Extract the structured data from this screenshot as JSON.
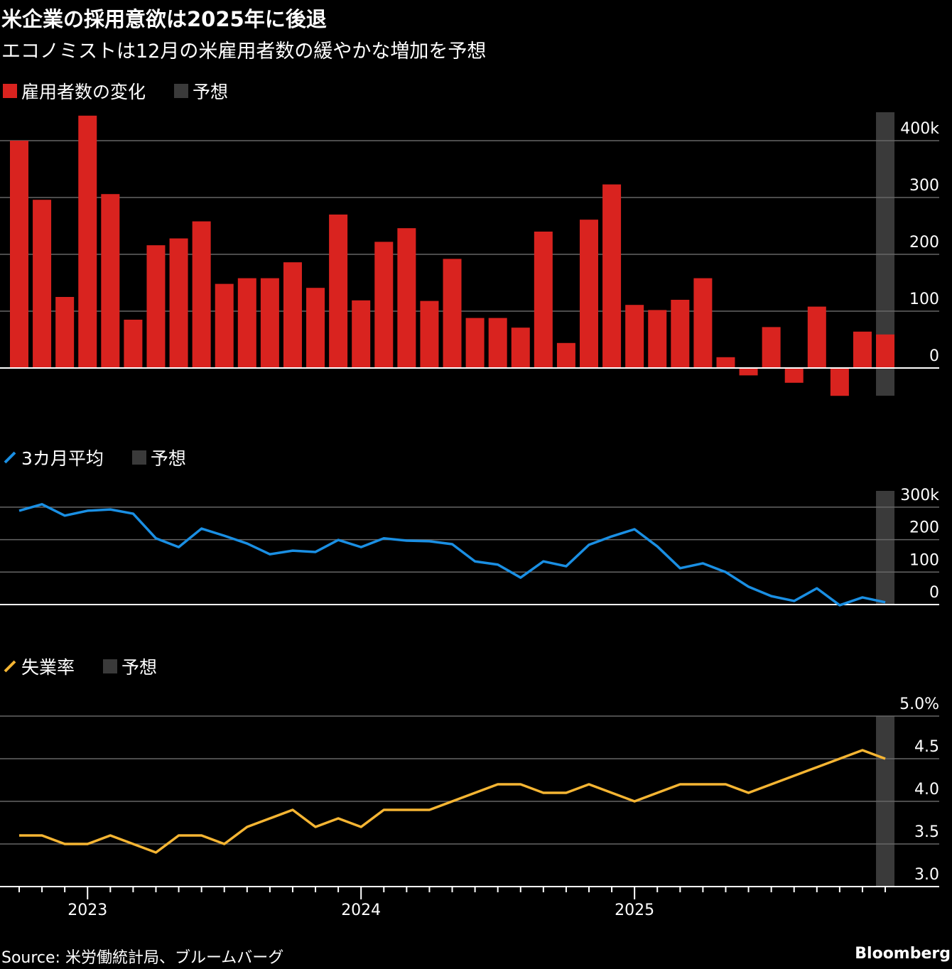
{
  "title": "米企業の採用意欲は2025年に後退",
  "subtitle": "エコノミストは12月の米雇用者数の緩やかな増加を予想",
  "source": "Source: 米労働統計局、ブルームバーグ",
  "brand": "Bloomberg",
  "colors": {
    "bar": "#d9231f",
    "avg": "#1a8fe3",
    "unemp": "#f5b533",
    "forecast": "#3a3a3a",
    "grid": "#666666"
  },
  "chart_data": [
    {
      "type": "bar",
      "legend": [
        {
          "label": "雇用者数の変化",
          "icon": "red-square"
        },
        {
          "label": "予想",
          "icon": "grey-square"
        }
      ],
      "x": [
        "2022-10",
        "2022-11",
        "2022-12",
        "2023-01",
        "2023-02",
        "2023-03",
        "2023-04",
        "2023-05",
        "2023-06",
        "2023-07",
        "2023-08",
        "2023-09",
        "2023-10",
        "2023-11",
        "2023-12",
        "2024-01",
        "2024-02",
        "2024-03",
        "2024-04",
        "2024-05",
        "2024-06",
        "2024-07",
        "2024-08",
        "2024-09",
        "2024-10",
        "2024-11",
        "2024-12",
        "2025-01",
        "2025-02",
        "2025-03",
        "2025-04",
        "2025-05",
        "2025-06",
        "2025-07",
        "2025-08",
        "2025-09",
        "2025-10",
        "2025-11",
        "2025-12"
      ],
      "values": [
        400,
        296,
        125,
        444,
        306,
        85,
        216,
        228,
        258,
        148,
        158,
        158,
        186,
        141,
        270,
        119,
        222,
        246,
        118,
        192,
        88,
        88,
        71,
        240,
        44,
        261,
        323,
        111,
        102,
        120,
        158,
        19,
        -13,
        72,
        -26,
        108,
        -49,
        64,
        59
      ],
      "forecast_from": "2025-12",
      "yticks": [
        "400k",
        "300",
        "200",
        "100",
        "0"
      ],
      "ytick_values": [
        400,
        300,
        200,
        100,
        0
      ],
      "ylim": [
        -50,
        450
      ]
    },
    {
      "type": "line",
      "legend": [
        {
          "label": "3カ月平均",
          "icon": "blue-line"
        },
        {
          "label": "予想",
          "icon": "grey-square"
        }
      ],
      "values": [
        289,
        309,
        274,
        289,
        293,
        280,
        204,
        177,
        234,
        212,
        188,
        155,
        166,
        162,
        199,
        177,
        204,
        197,
        195,
        186,
        133,
        123,
        83,
        133,
        118,
        184,
        210,
        232,
        179,
        112,
        127,
        100,
        55,
        26,
        11,
        50,
        -2,
        22,
        7
      ],
      "forecast_from": "2025-12",
      "yticks": [
        "300k",
        "200",
        "100",
        "0"
      ],
      "ytick_values": [
        300,
        200,
        100,
        0
      ],
      "ylim": [
        0,
        350
      ]
    },
    {
      "type": "line",
      "legend": [
        {
          "label": "失業率",
          "icon": "yellow-line"
        },
        {
          "label": "予想",
          "icon": "grey-square"
        }
      ],
      "values": [
        3.6,
        3.6,
        3.5,
        3.5,
        3.6,
        3.5,
        3.4,
        3.6,
        3.6,
        3.5,
        3.7,
        3.8,
        3.9,
        3.7,
        3.8,
        3.7,
        3.9,
        3.9,
        3.9,
        4.0,
        4.1,
        4.2,
        4.2,
        4.1,
        4.1,
        4.2,
        4.1,
        4.0,
        4.1,
        4.2,
        4.2,
        4.2,
        4.1,
        4.2,
        4.3,
        4.4,
        4.5,
        4.6,
        4.5
      ],
      "forecast_from": "2025-12",
      "yticks": [
        "5.0%",
        "4.5",
        "4.0",
        "3.5",
        "3.0"
      ],
      "ytick_values": [
        5.0,
        4.5,
        4.0,
        3.5,
        3.0
      ],
      "ylim": [
        3.0,
        5.0
      ],
      "xticks": [
        {
          "label": "2023",
          "index": 3
        },
        {
          "label": "2024",
          "index": 15
        },
        {
          "label": "2025",
          "index": 27
        }
      ]
    }
  ]
}
